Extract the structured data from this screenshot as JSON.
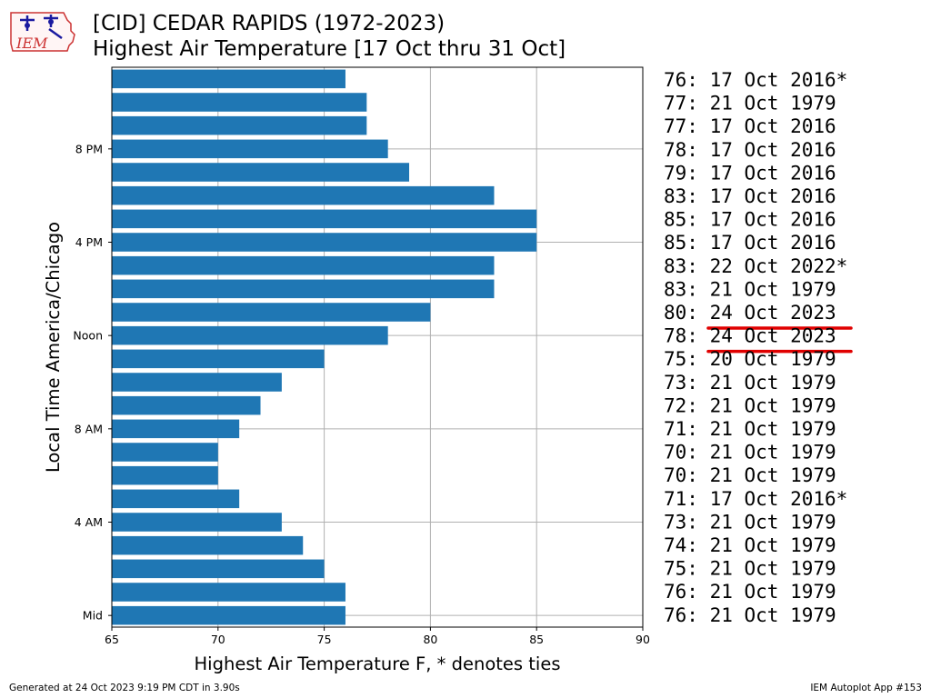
{
  "title_line_1": "[CID] CEDAR RAPIDS (1972-2023)",
  "title_line_2": "Highest Air Temperature [17 Oct thru 31 Oct]",
  "logo_text": "IEM",
  "footer_left": "Generated at 24 Oct 2023 9:19 PM CDT in 3.90s",
  "footer_right": "IEM Autoplot App #153",
  "colors": {
    "bar": "#1f77b4",
    "grid": "#b0b0b0",
    "highlight": "#e00000",
    "logo": "#cc3333"
  },
  "chart_data": {
    "type": "bar",
    "orientation": "horizontal",
    "xlabel": "Highest Air Temperature F, * denotes ties",
    "ylabel": "Local Time America/Chicago",
    "xlim": [
      65,
      90
    ],
    "x_ticks": [
      65,
      70,
      75,
      80,
      85,
      90
    ],
    "y_ticks": [
      {
        "hour": 0,
        "label": "Mid"
      },
      {
        "hour": 4,
        "label": "4 AM"
      },
      {
        "hour": 8,
        "label": "8 AM"
      },
      {
        "hour": 12,
        "label": "Noon"
      },
      {
        "hour": 16,
        "label": "4 PM"
      },
      {
        "hour": 20,
        "label": "8 PM"
      }
    ],
    "grid": true,
    "hours": [
      0,
      1,
      2,
      3,
      4,
      5,
      6,
      7,
      8,
      9,
      10,
      11,
      12,
      13,
      14,
      15,
      16,
      17,
      18,
      19,
      20,
      21,
      22,
      23
    ],
    "values": [
      76,
      76,
      75,
      74,
      73,
      71,
      70,
      70,
      71,
      72,
      73,
      75,
      78,
      80,
      83,
      83,
      85,
      85,
      83,
      79,
      78,
      77,
      77,
      76
    ],
    "annotations": [
      "76: 17 Oct 2016*",
      "77: 21 Oct 1979",
      "77: 17 Oct 2016",
      "78: 17 Oct 2016",
      "79: 17 Oct 2016",
      "83: 17 Oct 2016",
      "85: 17 Oct 2016",
      "85: 17 Oct 2016",
      "83: 22 Oct 2022*",
      "83: 21 Oct 1979",
      "80: 24 Oct 2023",
      "78: 24 Oct 2023",
      "75: 20 Oct 1979",
      "73: 21 Oct 1979",
      "72: 21 Oct 1979",
      "71: 21 Oct 1979",
      "70: 21 Oct 1979",
      "70: 21 Oct 1979",
      "71: 17 Oct 2016*",
      "73: 21 Oct 1979",
      "74: 21 Oct 1979",
      "75: 21 Oct 1979",
      "76: 21 Oct 1979",
      "76: 21 Oct 1979"
    ],
    "highlighted_annotations": [
      10,
      11
    ]
  }
}
